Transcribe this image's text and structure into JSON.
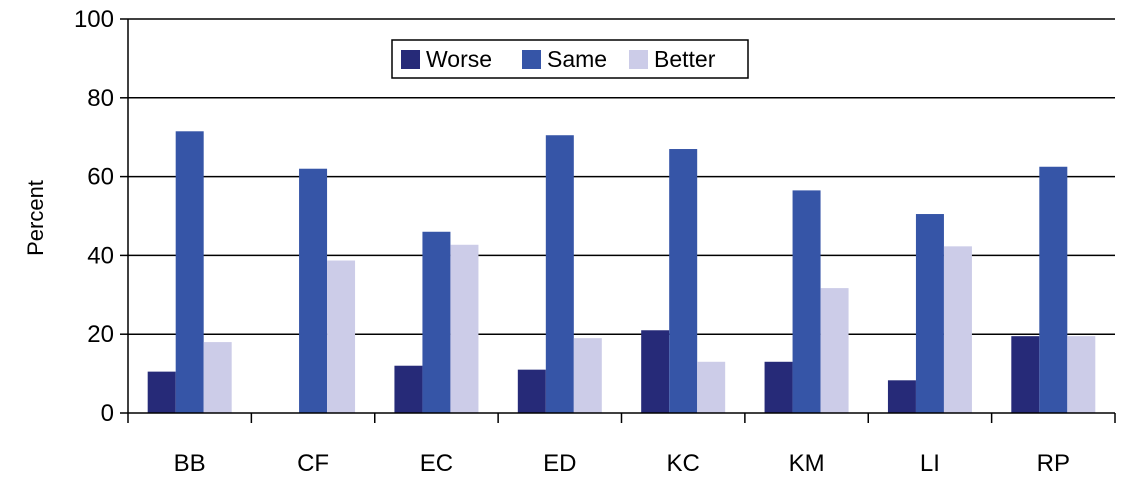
{
  "chart_data": {
    "type": "bar",
    "title": "",
    "xlabel": "",
    "ylabel": "Percent",
    "ylim": [
      0,
      100
    ],
    "yticks": [
      0,
      20,
      40,
      60,
      80,
      100
    ],
    "grid": true,
    "legend_position": "top-center",
    "categories": [
      "BB",
      "CF",
      "EC",
      "ED",
      "KC",
      "KM",
      "LI",
      "RP"
    ],
    "series": [
      {
        "name": "Worse",
        "color": "#262a78",
        "values": [
          10.5,
          0,
          12,
          11,
          21,
          13,
          8.3,
          19.5
        ]
      },
      {
        "name": "Same",
        "color": "#3655a7",
        "values": [
          71.5,
          62,
          46,
          70.5,
          67,
          56.5,
          50.5,
          62.5
        ]
      },
      {
        "name": "Better",
        "color": "#cccce8",
        "values": [
          18,
          38.7,
          42.7,
          19,
          13,
          31.7,
          42.3,
          19.5
        ]
      }
    ]
  }
}
